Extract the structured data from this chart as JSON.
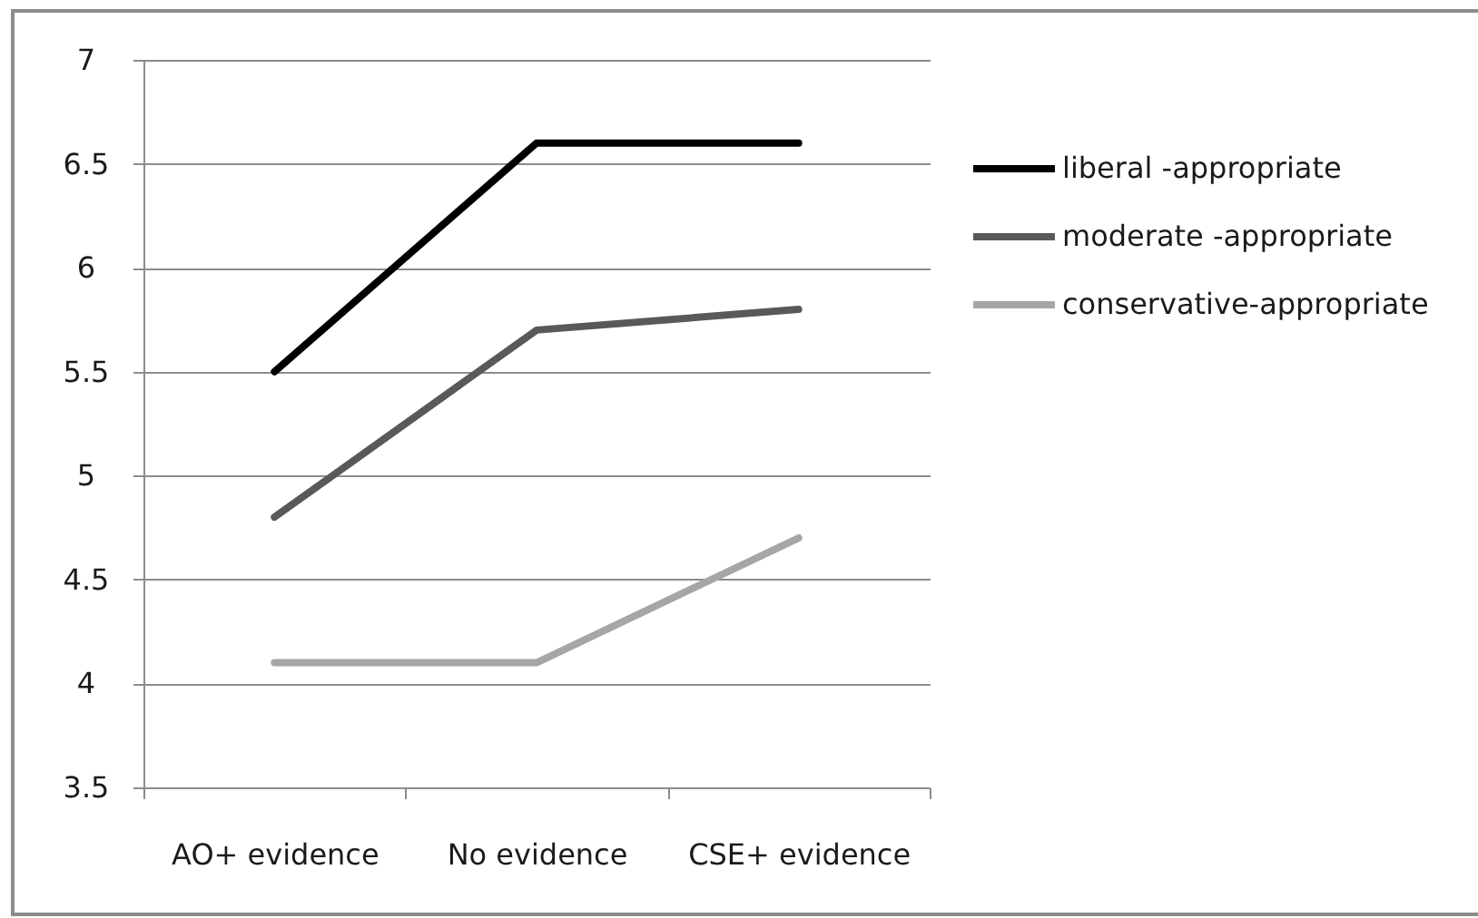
{
  "chart_data": {
    "type": "line",
    "categories": [
      "AO+ evidence",
      "No evidence",
      "CSE+ evidence"
    ],
    "series": [
      {
        "name": "liberal -appropriate",
        "color": "#000000",
        "values": [
          5.5,
          6.6,
          6.6
        ]
      },
      {
        "name": "moderate -appropriate",
        "color": "#595959",
        "values": [
          4.8,
          5.7,
          5.8
        ]
      },
      {
        "name": "conservative-appropriate",
        "color": "#a6a6a6",
        "values": [
          4.1,
          4.1,
          4.7
        ]
      }
    ],
    "ylim": [
      3.5,
      7
    ],
    "yticks": [
      3.5,
      4,
      4.5,
      5,
      5.5,
      6,
      6.5,
      7
    ],
    "grid": "y",
    "legend": "right",
    "line_style": "solid"
  }
}
